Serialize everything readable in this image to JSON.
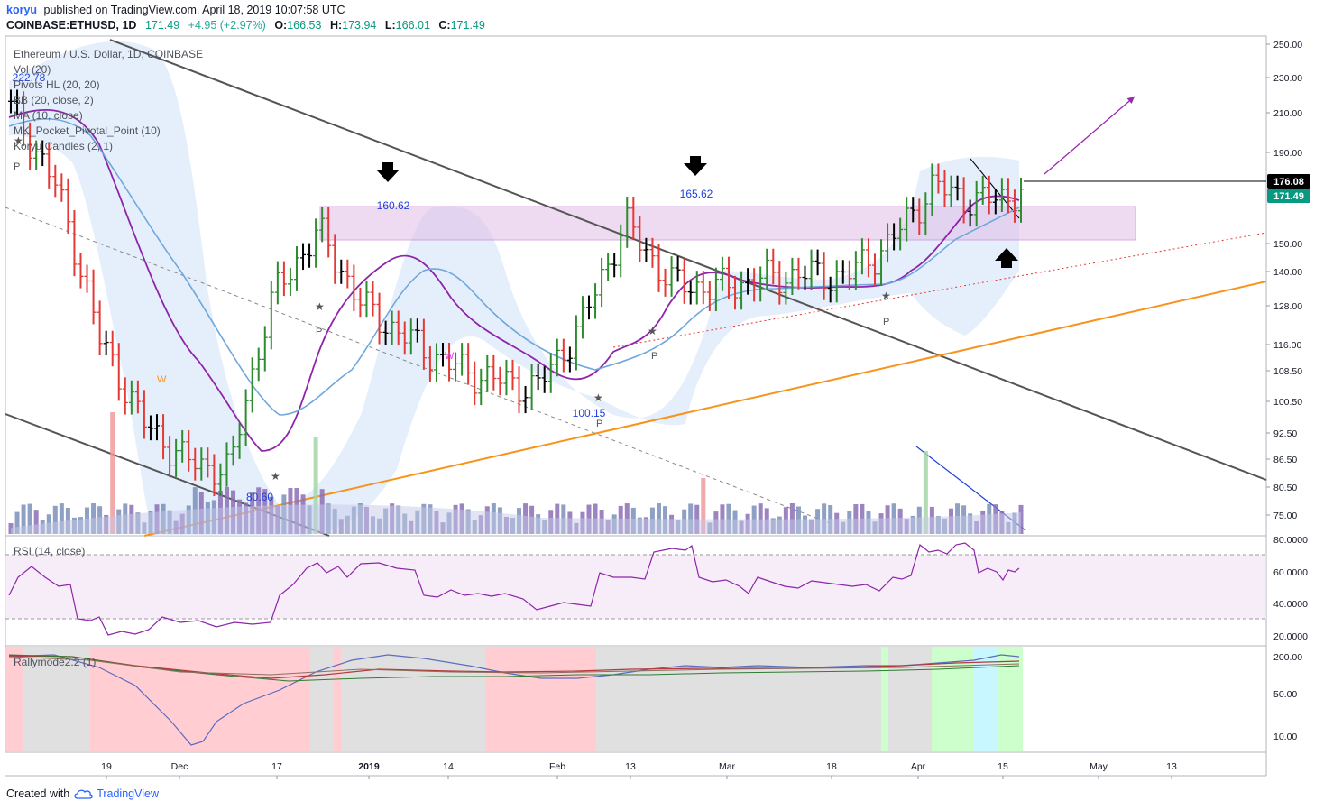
{
  "header": {
    "author": "koryu",
    "published": "published on TradingView.com, April 18, 2019 10:07:58 UTC",
    "symbol": "COINBASE:ETHUSD, 1D",
    "last": "171.49",
    "change": "+4.95 (+2.97%)",
    "o_label": "O:",
    "o": "166.53",
    "h_label": "H:",
    "h": "173.94",
    "l_label": "L:",
    "l": "166.01",
    "c_label": "C:",
    "c": "171.49"
  },
  "legend": {
    "title": "Ethereum / U.S. Dollar, 1D, COINBASE",
    "items": [
      "Vol (20)",
      "Pivots HL (20, 20)",
      "BB (20, close, 2)",
      "MA (10, close)",
      "MK_Pocket_Pivotal_Point (10)",
      "Koryu Candles (2, 1)"
    ]
  },
  "price_axis": {
    "ticks": [
      "250.00",
      "230.00",
      "210.00",
      "190.00",
      "150.00",
      "140.00",
      "128.00",
      "116.00",
      "108.50",
      "100.50",
      "92.50",
      "86.50",
      "80.50",
      "75.00"
    ],
    "badge_resistance": "176.08",
    "badge_last": "171.49",
    "colors": {
      "resistance": "#000000",
      "last": "#089981"
    }
  },
  "rsi_pane": {
    "label": "RSI (14, close)",
    "ticks": [
      "80.0000",
      "60.0000",
      "40.0000",
      "20.0000"
    ]
  },
  "rally_pane": {
    "label": "Rallymode2.2 (1)",
    "ticks": [
      "200.00",
      "50.00",
      "10.00"
    ]
  },
  "time_axis": {
    "labels": [
      "19",
      "Dec",
      "17",
      "2019",
      "14",
      "Feb",
      "13",
      "Mar",
      "18",
      "Apr",
      "15",
      "May",
      "13"
    ]
  },
  "annotations": {
    "high_1": "160.62",
    "high_2": "165.62",
    "low_1": "100.15",
    "low_2": "80.60",
    "top_left": "222.78",
    "pivot_marker": "P",
    "w_marker": "W"
  },
  "footer": {
    "created": "Created with",
    "brand": "TradingView"
  },
  "chart_data": {
    "type": "candlestick",
    "title": "Ethereum / U.S. Dollar, 1D, COINBASE",
    "ylabel": "",
    "x": [
      "2018-11-11",
      "2018-11-18",
      "2018-11-25",
      "2018-12-02",
      "2018-12-09",
      "2018-12-16",
      "2018-12-23",
      "2018-12-30",
      "2019-01-06",
      "2019-01-13",
      "2019-01-20",
      "2019-01-27",
      "2019-02-03",
      "2019-02-10",
      "2019-02-17",
      "2019-02-24",
      "2019-03-03",
      "2019-03-10",
      "2019-03-17",
      "2019-03-24",
      "2019-03-31",
      "2019-04-07",
      "2019-04-14",
      "2019-04-18"
    ],
    "close": [
      212,
      175,
      118,
      95,
      86,
      84,
      132,
      155,
      128,
      118,
      110,
      106,
      104,
      122,
      158,
      136,
      134,
      137,
      139,
      138,
      150,
      174,
      167,
      171.49
    ],
    "ylim": [
      70,
      255
    ],
    "yscale": "log",
    "last_price": 171.49,
    "resistance_level": 176.08,
    "marked_highs": [
      160.62,
      165.62
    ],
    "marked_lows": [
      100.15,
      80.6
    ],
    "rsi": {
      "label": "RSI (14, close)",
      "ylim": [
        15,
        82
      ],
      "bands": [
        30,
        70
      ],
      "last": 61
    },
    "colors": {
      "bull": "#2e8b2e",
      "bear": "#e53935",
      "neutral": "#000000",
      "ma": "#8e24aa",
      "bb_fill": "#dce9fb",
      "trend_orange": "#f7931a",
      "zone": "#e1bee7"
    }
  }
}
